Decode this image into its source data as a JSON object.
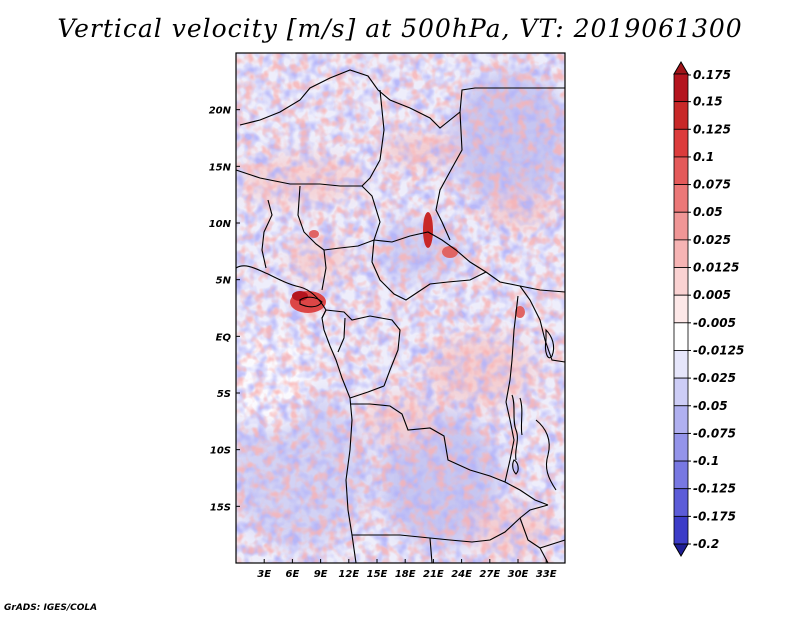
{
  "title": "Vertical velocity [m/s] at 500hPa, VT: 2019061300",
  "credit": "GrADS: IGES/COLA",
  "map": {
    "lon_range": [
      0,
      35
    ],
    "lat_range": [
      -20,
      25
    ],
    "lon_ticks": [
      {
        "value": 3,
        "label": "3E"
      },
      {
        "value": 6,
        "label": "6E"
      },
      {
        "value": 9,
        "label": "9E"
      },
      {
        "value": 12,
        "label": "12E"
      },
      {
        "value": 15,
        "label": "15E"
      },
      {
        "value": 18,
        "label": "18E"
      },
      {
        "value": 21,
        "label": "21E"
      },
      {
        "value": 24,
        "label": "24E"
      },
      {
        "value": 27,
        "label": "27E"
      },
      {
        "value": 30,
        "label": "30E"
      },
      {
        "value": 33,
        "label": "33E"
      }
    ],
    "lat_ticks": [
      {
        "value": 20,
        "label": "20N"
      },
      {
        "value": 15,
        "label": "15N"
      },
      {
        "value": 10,
        "label": "10N"
      },
      {
        "value": 5,
        "label": "5N"
      },
      {
        "value": 0,
        "label": "EQ"
      },
      {
        "value": -5,
        "label": "5S"
      },
      {
        "value": -10,
        "label": "10S"
      },
      {
        "value": -15,
        "label": "15S"
      }
    ]
  },
  "colorbar": {
    "levels": [
      {
        "label": "0.175",
        "color": "#b4141e"
      },
      {
        "label": "0.15",
        "color": "#c82828"
      },
      {
        "label": "0.125",
        "color": "#dc3c3c"
      },
      {
        "label": "0.1",
        "color": "#e45a5a"
      },
      {
        "label": "0.075",
        "color": "#ec7878"
      },
      {
        "label": "0.05",
        "color": "#f09696"
      },
      {
        "label": "0.025",
        "color": "#f6b4b4"
      },
      {
        "label": "0.0125",
        "color": "#fad2d2"
      },
      {
        "label": "0.005",
        "color": "#fde8e8"
      },
      {
        "label": "-0.005",
        "color": "#ffffff"
      },
      {
        "label": "-0.0125",
        "color": "#e6e6fb"
      },
      {
        "label": "-0.025",
        "color": "#cdcdf6"
      },
      {
        "label": "-0.05",
        "color": "#b0b0f0"
      },
      {
        "label": "-0.075",
        "color": "#9494ea"
      },
      {
        "label": "-0.1",
        "color": "#7878e2"
      },
      {
        "label": "-0.125",
        "color": "#5c5cd8"
      },
      {
        "label": "-0.175",
        "color": "#3c3cc8"
      },
      {
        "label": "-0.2",
        "color": "#2828b4"
      }
    ],
    "top_color": "#a01419",
    "bottom_color": "#1e1e96"
  }
}
